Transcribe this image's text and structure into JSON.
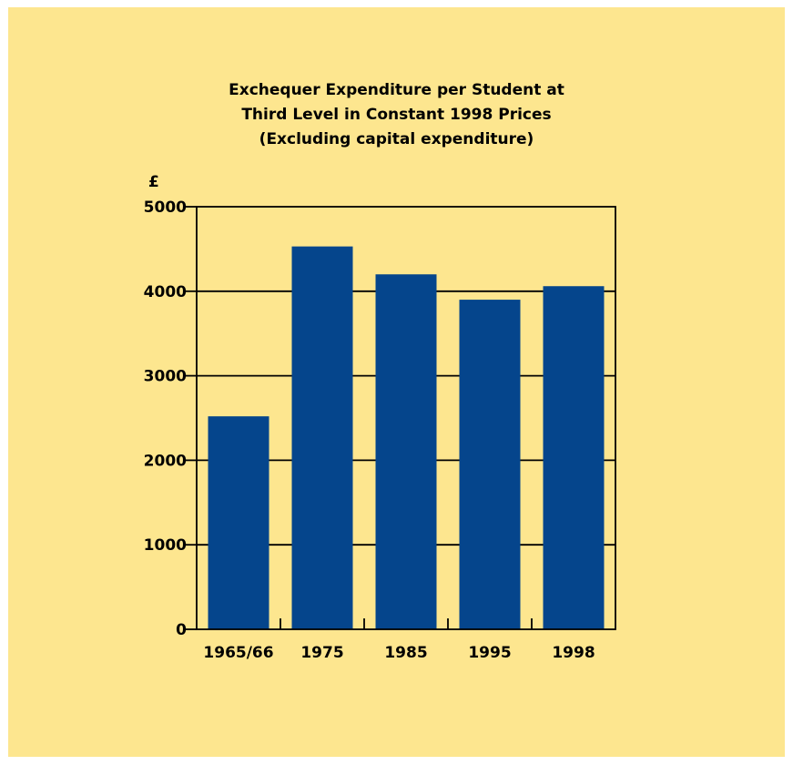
{
  "chart_data": {
    "type": "bar",
    "title": [
      "Exchequer Expenditure per Student at",
      "Third Level in Constant 1998 Prices",
      "(Excluding capital expenditure)"
    ],
    "ylabel": "£",
    "xlabel": "",
    "categories": [
      "1965/66",
      "1975",
      "1985",
      "1995",
      "1998"
    ],
    "values": [
      2520,
      4530,
      4200,
      3900,
      4060
    ],
    "ylim": [
      0,
      5000
    ],
    "yticks": [
      0,
      1000,
      2000,
      3000,
      4000,
      5000
    ],
    "grid": true,
    "colors": {
      "bar": "#05458c",
      "background": "#fde68f",
      "axis": "#000000"
    }
  }
}
